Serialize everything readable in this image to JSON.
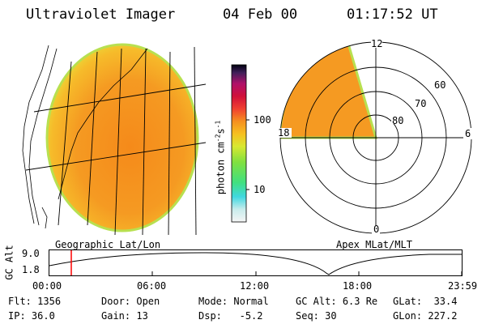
{
  "header": {
    "instrument": "Ultraviolet Imager",
    "date": "04 Feb 00",
    "time": "01:17:52 UT"
  },
  "colorbar": {
    "unit_label": "photon cm-2s-1",
    "unit_base": "photon cm",
    "unit_sup": "-2",
    "unit_s": "s",
    "unit_sup2": "-1",
    "ticks": [
      "100",
      "10"
    ]
  },
  "panels": {
    "geographic_label": "Geographic Lat/Lon",
    "apex_label": "Apex MLat/MLT"
  },
  "polar": {
    "mlt_labels": [
      "12",
      "6",
      "0",
      "18"
    ],
    "lat_labels": [
      "60",
      "70",
      "80"
    ]
  },
  "altitude_plot": {
    "ylabel": "GC Alt",
    "yticks": [
      "9.0",
      "1.8"
    ],
    "xticks": [
      "00:00",
      "06:00",
      "12:00",
      "18:00",
      "23:59"
    ],
    "marker_time": "01:17:52"
  },
  "status": {
    "flt": {
      "label": "Flt:",
      "value": "1356"
    },
    "ip": {
      "label": "IP:",
      "value": "36.0"
    },
    "door": {
      "label": "Door:",
      "value": "Open"
    },
    "gain": {
      "label": "Gain:",
      "value": "13"
    },
    "mode": {
      "label": "Mode:",
      "value": "Normal"
    },
    "dsp": {
      "label": "Dsp:",
      "value": "-5.2"
    },
    "gcalt": {
      "label": "GC Alt:",
      "value": "6.3 Re"
    },
    "seq": {
      "label": "Seq:",
      "value": "30"
    },
    "glat": {
      "label": "GLat:",
      "value": "33.4"
    },
    "glon": {
      "label": "GLon:",
      "value": "227.2"
    }
  }
}
